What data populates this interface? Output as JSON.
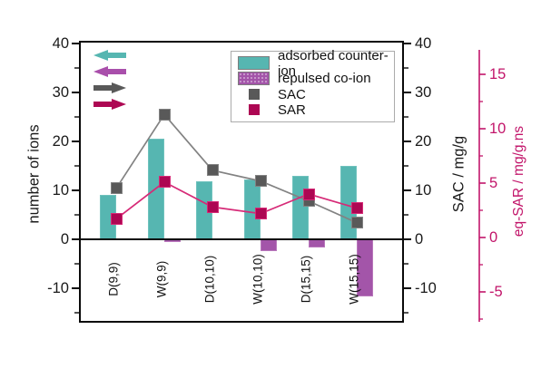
{
  "chart_data": {
    "type": "bar+line combo",
    "title": "",
    "categories": [
      "D(9,9)",
      "W(9,9)",
      "D(10,10)",
      "W(10,10)",
      "D(15,15)",
      "W(15,15)"
    ],
    "series": [
      {
        "name": "adsorbed counter-ion",
        "type": "bar",
        "axis": "number of ions",
        "color": "#56b6b1",
        "border_color": "#6fc2bd",
        "values": [
          9.0,
          20.6,
          11.9,
          12.2,
          12.9,
          15.0
        ]
      },
      {
        "name": "repulsed co-ion",
        "type": "bar",
        "axis": "number of ions",
        "color": "#a355a9",
        "border_color": "#b877bb",
        "values": [
          0,
          -0.6,
          0,
          -2.4,
          -1.6,
          -11.6
        ]
      },
      {
        "name": "SAC",
        "type": "line",
        "marker": "square",
        "axis": "SAC / mg/g",
        "color": "#595959",
        "line_color": "#828282",
        "values": [
          10.4,
          25.5,
          14.1,
          11.9,
          7.8,
          3.4
        ]
      },
      {
        "name": "SAR",
        "type": "line",
        "marker": "square",
        "axis": "eq-SAR / mg/g.ns",
        "color": "#ad0753",
        "line_color": "#d62a77",
        "values": [
          1.7,
          5.1,
          2.8,
          2.2,
          4.0,
          2.7
        ]
      }
    ],
    "axes": {
      "left": {
        "label": "number of ions",
        "major_ticks": [
          40,
          30,
          20,
          10,
          0,
          -10
        ],
        "minor_ticks": [
          35,
          25,
          15,
          5,
          -5,
          -15
        ],
        "range": [
          -17.2,
          40.6
        ],
        "color": "#0a0a0a"
      },
      "right": {
        "label": "SAC / mg/g",
        "major_ticks": [
          40,
          30,
          20,
          10,
          0,
          -10
        ],
        "minor_ticks": [
          35,
          25,
          15,
          5,
          -5,
          -15
        ],
        "range": [
          -17.2,
          40.6
        ],
        "color": "#0a0a0a"
      },
      "far_right": {
        "label": "eq-SAR /  mg/g.ns",
        "major_ticks": [
          15,
          10,
          5,
          0,
          -5
        ],
        "minor_ticks": [
          12.5,
          7.5,
          2.5,
          -2.5,
          -7.5
        ],
        "range": [
          -7.8,
          17.2
        ],
        "color": "#c2156a"
      },
      "x": {
        "zero_baseline": true,
        "gridlines": false
      }
    },
    "legend": {
      "position": "top-right-inside",
      "items": [
        "adsorbed counter-ion",
        "repulsed co-ion",
        "SAC",
        "SAR"
      ]
    },
    "annotations": {
      "arrows": [
        {
          "name": "counter-ion-to-left-axis",
          "direction": "left",
          "color": "#56b6b1"
        },
        {
          "name": "co-ion-to-left-axis",
          "direction": "left",
          "color": "#a94fab"
        },
        {
          "name": "sac-to-right-axis",
          "direction": "right",
          "color": "#595959"
        },
        {
          "name": "sar-to-far-right-axis",
          "direction": "right",
          "color": "#ad0753"
        }
      ]
    }
  }
}
